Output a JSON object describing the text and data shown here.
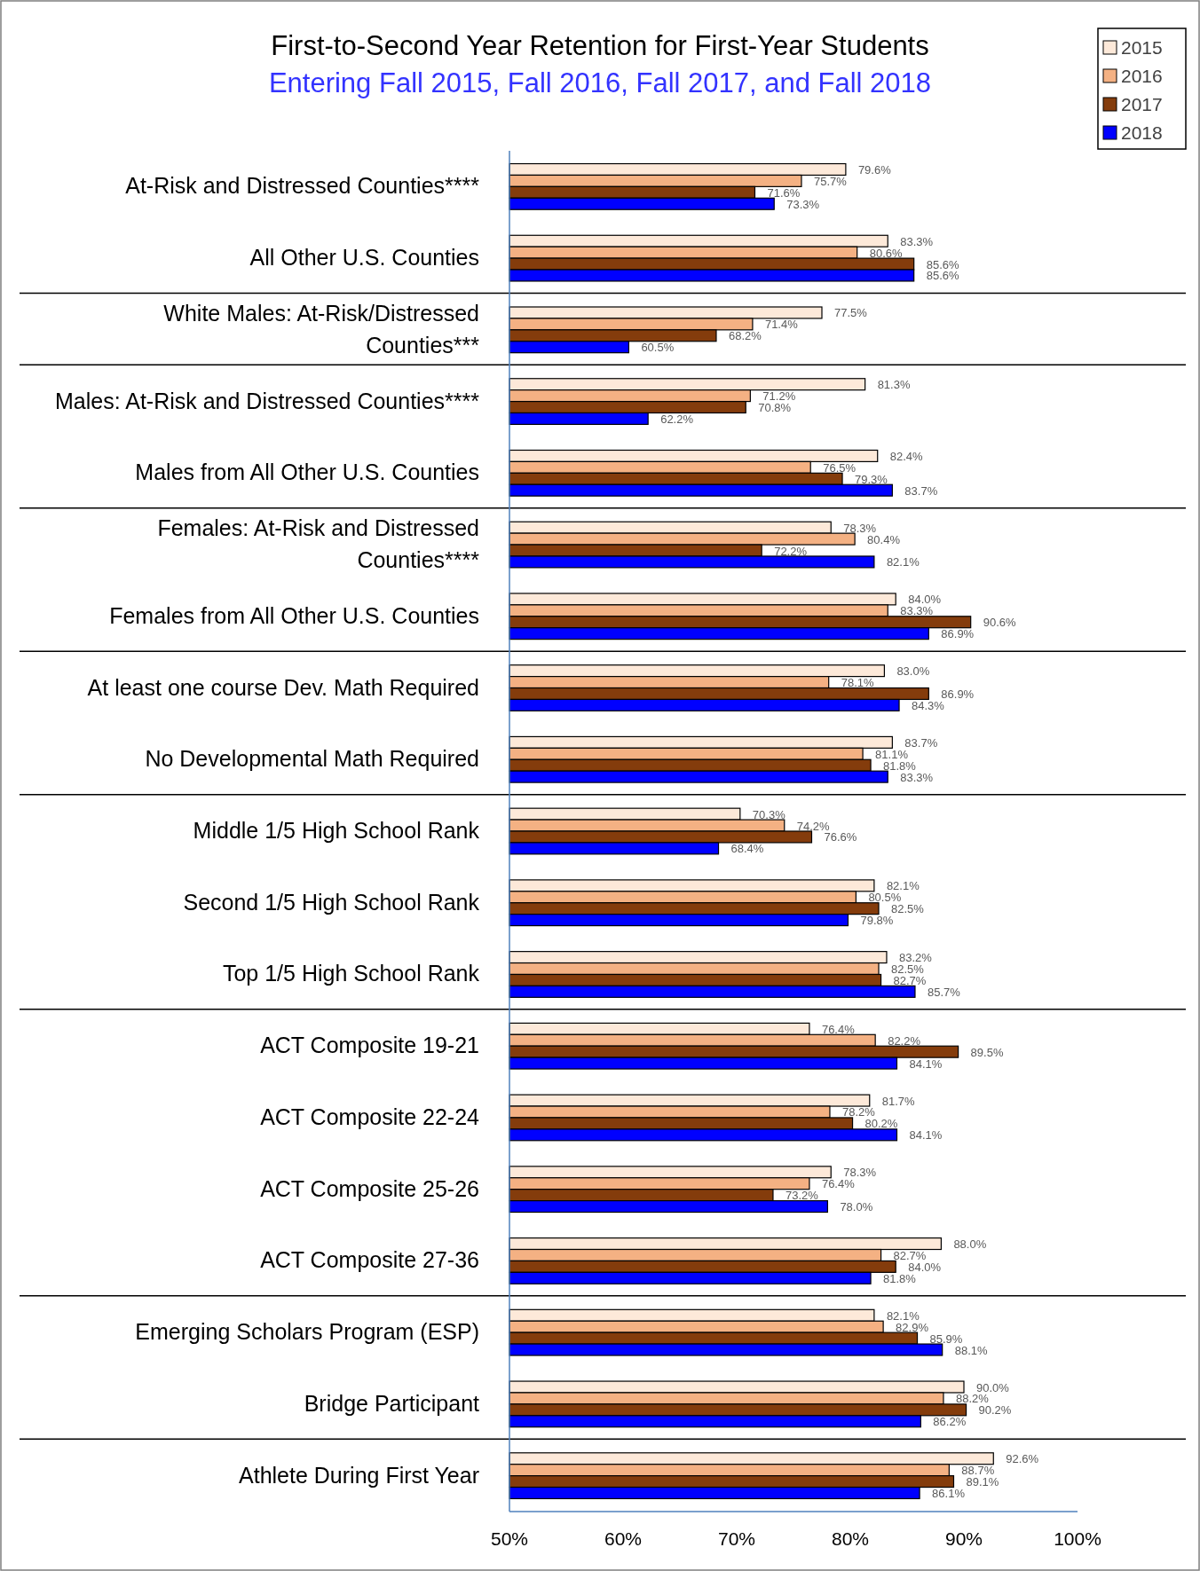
{
  "chart_data": {
    "type": "bar",
    "orientation": "horizontal",
    "title": "First-to-Second Year Retention for First-Year Students",
    "subtitle": "Entering Fall 2015, Fall 2016, Fall 2017, and Fall 2018",
    "categories": [
      "At-Risk and Distressed Counties****",
      "All Other U.S. Counties",
      "White Males: At-Risk/Distressed Counties***",
      "Males: At-Risk and Distressed Counties****",
      "Males from All Other U.S. Counties",
      "Females: At-Risk and Distressed Counties****",
      "Females from All Other U.S. Counties",
      "At least one course Dev. Math Required",
      "No Developmental Math Required",
      "Middle 1/5 High School Rank",
      "Second 1/5 High School Rank",
      "Top 1/5 High School Rank",
      "ACT Composite 19-21",
      "ACT Composite 22-24",
      "ACT Composite 25-26",
      "ACT Composite 27-36",
      "Emerging Scholars Program (ESP)",
      "Bridge Participant",
      "Athlete During First Year"
    ],
    "series": [
      {
        "name": "2015",
        "color": "#fde9d9",
        "values": [
          79.6,
          83.3,
          77.5,
          81.3,
          82.4,
          78.3,
          84.0,
          83.0,
          83.7,
          70.3,
          82.1,
          83.2,
          76.4,
          81.7,
          78.3,
          88.0,
          82.1,
          90.0,
          92.6
        ],
        "value_labels": [
          "79.6%",
          "83.3%",
          "77.5%",
          "81.3%",
          "82.4%",
          "78.3%",
          "84.0%",
          "83.0%",
          "83.7%",
          "70.3%",
          "82.1%",
          "83.2%",
          "76.4%",
          "81.7%",
          "78.3%",
          "88.0%",
          "82.1%",
          "90.0%",
          "92.6%"
        ]
      },
      {
        "name": "2016",
        "color": "#f4b183",
        "values": [
          75.7,
          80.6,
          71.4,
          71.2,
          76.5,
          80.4,
          83.3,
          78.1,
          81.1,
          74.2,
          80.5,
          82.5,
          82.2,
          78.2,
          76.4,
          82.7,
          82.9,
          88.2,
          88.7
        ],
        "value_labels": [
          "75.7%",
          "80.6%",
          "71.4%",
          "71.2%",
          "76.5%",
          "80.4%",
          "83.3%",
          "78.1%",
          "81.1%",
          "74.2%",
          "80.5%",
          "82.5%",
          "82.2%",
          "78.2%",
          "76.4%",
          "82.7%",
          "82.9%",
          "88.2%",
          "88.7%"
        ]
      },
      {
        "name": "2017",
        "color": "#843c0c",
        "values": [
          71.6,
          85.6,
          68.2,
          70.8,
          79.3,
          72.2,
          90.6,
          86.9,
          81.8,
          76.6,
          82.5,
          82.7,
          89.5,
          80.2,
          73.2,
          84.0,
          85.9,
          90.2,
          89.1
        ],
        "value_labels": [
          "71.6%",
          "85.6%",
          "68.2%",
          "70.8%",
          "79.3%",
          "72.2%",
          "90.6%",
          "86.9%",
          "81.8%",
          "76.6%",
          "82.5%",
          "82.7%",
          "89.5%",
          "80.2%",
          "73.2%",
          "84.0%",
          "85.9%",
          "90.2%",
          "89.1%"
        ]
      },
      {
        "name": "2018",
        "color": "#0000ff",
        "values": [
          73.3,
          85.6,
          60.5,
          62.2,
          83.7,
          82.1,
          86.9,
          84.3,
          83.3,
          68.4,
          79.8,
          85.7,
          84.1,
          84.1,
          78.0,
          81.8,
          88.1,
          86.2,
          86.1
        ],
        "value_labels": [
          "73.3%",
          "85.6%",
          "60.5%",
          "62.2%",
          "83.7%",
          "82.1%",
          "86.9%",
          "84.3%",
          "83.3%",
          "68.4%",
          "79.8%",
          "85.7%",
          "84.1%",
          "84.1%",
          "78.0%",
          "81.8%",
          "88.1%",
          "86.2%",
          "86.1%"
        ]
      }
    ],
    "xlim": [
      50,
      100
    ],
    "xticks": [
      {
        "value": 50,
        "label": "50%"
      },
      {
        "value": 60,
        "label": "60%"
      },
      {
        "value": 70,
        "label": "70%"
      },
      {
        "value": 80,
        "label": "80%"
      },
      {
        "value": 90,
        "label": "90%"
      },
      {
        "value": 100,
        "label": "100%"
      }
    ],
    "grid": false,
    "legend": "top right"
  }
}
